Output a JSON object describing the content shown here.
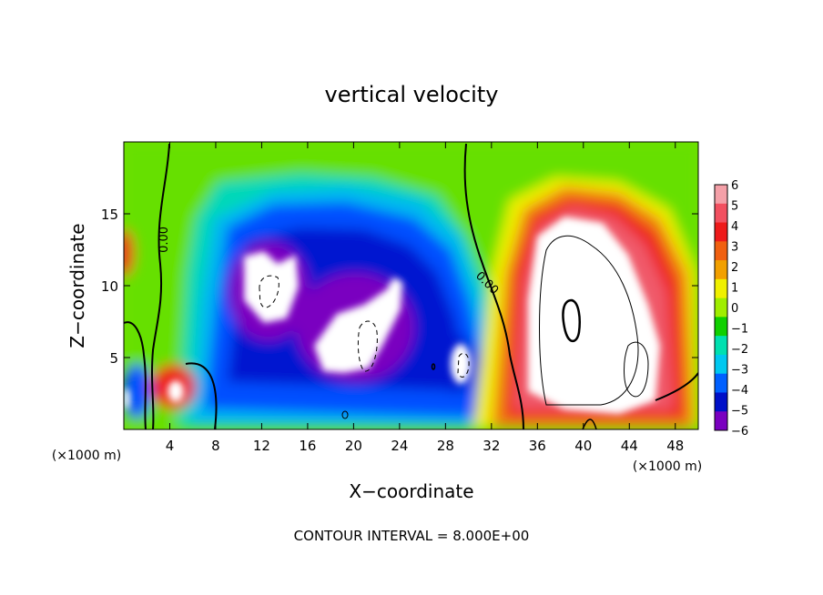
{
  "chart_data": {
    "type": "heatmap",
    "title": "vertical velocity",
    "xlabel": "X−coordinate",
    "ylabel": "Z−coordinate",
    "x_unit_left": "(×1000 m)",
    "x_unit_right": "(×1000 m)",
    "xlim": [
      0,
      50
    ],
    "ylim": [
      0,
      20
    ],
    "x_ticks": [
      4,
      8,
      12,
      16,
      20,
      24,
      28,
      32,
      36,
      40,
      44,
      48
    ],
    "y_ticks": [
      5,
      10,
      15
    ],
    "colorbar": {
      "range": [
        -6,
        6
      ],
      "labels": [
        "6",
        "5",
        "4",
        "3",
        "2",
        "1",
        "0",
        "−1",
        "−2",
        "−3",
        "−4",
        "−5",
        "−6"
      ],
      "colors": [
        "#f4a0a8",
        "#f25060",
        "#ee1a1a",
        "#f06010",
        "#f2a000",
        "#f0f000",
        "#a0ee00",
        "#10d000",
        "#00e0b0",
        "#00c8f0",
        "#0060ff",
        "#0010c8",
        "#7a00c0"
      ]
    },
    "contour_labels": [
      {
        "text": "0.00",
        "x": 3.8,
        "y": 13.2,
        "angle": -90
      },
      {
        "text": "0.00",
        "x": 31.4,
        "y": 10.0,
        "angle": 45
      }
    ],
    "footer": "CONTOUR INTERVAL = 8.000E+00",
    "grid": false,
    "legend": "right colorbar"
  }
}
